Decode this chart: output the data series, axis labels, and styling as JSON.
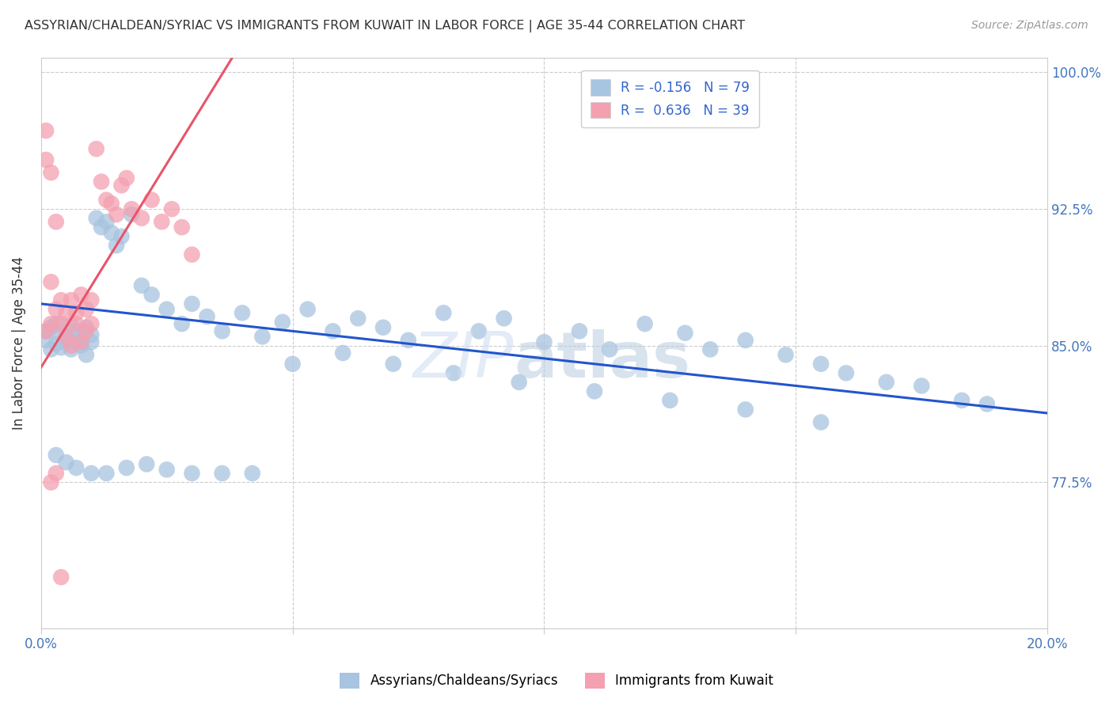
{
  "title": "ASSYRIAN/CHALDEAN/SYRIAC VS IMMIGRANTS FROM KUWAIT IN LABOR FORCE | AGE 35-44 CORRELATION CHART",
  "source": "Source: ZipAtlas.com",
  "ylabel": "In Labor Force | Age 35-44",
  "xmin": 0.0,
  "xmax": 0.2,
  "ymin": 0.695,
  "ymax": 1.008,
  "yticks": [
    0.775,
    0.85,
    0.925,
    1.0
  ],
  "xticks": [
    0.0,
    0.05,
    0.1,
    0.15,
    0.2
  ],
  "xtick_labels": [
    "0.0%",
    "",
    "",
    "",
    "20.0%"
  ],
  "ytick_labels": [
    "77.5%",
    "85.0%",
    "92.5%",
    "100.0%"
  ],
  "legend_r1": "R = -0.156",
  "legend_n1": "N = 79",
  "legend_r2": "R =  0.636",
  "legend_n2": "N = 39",
  "blue_color": "#a8c4e0",
  "pink_color": "#f4a0b0",
  "blue_line_color": "#2255cc",
  "pink_line_color": "#e8546a",
  "blue_line_x0": 0.0,
  "blue_line_x1": 0.2,
  "blue_line_y0": 0.873,
  "blue_line_y1": 0.813,
  "pink_line_x0": 0.0,
  "pink_line_x1": 0.038,
  "pink_line_y0": 0.838,
  "pink_line_y1": 1.008,
  "blue_x": [
    0.001,
    0.001,
    0.002,
    0.002,
    0.003,
    0.003,
    0.004,
    0.004,
    0.005,
    0.005,
    0.006,
    0.006,
    0.007,
    0.007,
    0.008,
    0.008,
    0.009,
    0.009,
    0.01,
    0.01,
    0.011,
    0.012,
    0.013,
    0.014,
    0.015,
    0.016,
    0.018,
    0.02,
    0.022,
    0.025,
    0.028,
    0.03,
    0.033,
    0.036,
    0.04,
    0.044,
    0.048,
    0.053,
    0.058,
    0.063,
    0.068,
    0.073,
    0.08,
    0.087,
    0.092,
    0.1,
    0.107,
    0.113,
    0.12,
    0.128,
    0.133,
    0.14,
    0.148,
    0.155,
    0.16,
    0.168,
    0.175,
    0.183,
    0.188,
    0.003,
    0.005,
    0.007,
    0.01,
    0.013,
    0.017,
    0.021,
    0.025,
    0.03,
    0.036,
    0.042,
    0.05,
    0.06,
    0.07,
    0.082,
    0.095,
    0.11,
    0.125,
    0.14,
    0.155
  ],
  "blue_y": [
    0.858,
    0.853,
    0.86,
    0.848,
    0.862,
    0.851,
    0.856,
    0.849,
    0.855,
    0.852,
    0.861,
    0.848,
    0.858,
    0.852,
    0.855,
    0.85,
    0.86,
    0.845,
    0.856,
    0.852,
    0.92,
    0.915,
    0.918,
    0.912,
    0.905,
    0.91,
    0.922,
    0.883,
    0.878,
    0.87,
    0.862,
    0.873,
    0.866,
    0.858,
    0.868,
    0.855,
    0.863,
    0.87,
    0.858,
    0.865,
    0.86,
    0.853,
    0.868,
    0.858,
    0.865,
    0.852,
    0.858,
    0.848,
    0.862,
    0.857,
    0.848,
    0.853,
    0.845,
    0.84,
    0.835,
    0.83,
    0.828,
    0.82,
    0.818,
    0.79,
    0.786,
    0.783,
    0.78,
    0.78,
    0.783,
    0.785,
    0.782,
    0.78,
    0.78,
    0.78,
    0.84,
    0.846,
    0.84,
    0.835,
    0.83,
    0.825,
    0.82,
    0.815,
    0.808
  ],
  "pink_x": [
    0.001,
    0.001,
    0.001,
    0.002,
    0.002,
    0.002,
    0.003,
    0.003,
    0.003,
    0.004,
    0.004,
    0.005,
    0.005,
    0.006,
    0.006,
    0.007,
    0.007,
    0.008,
    0.008,
    0.009,
    0.009,
    0.01,
    0.01,
    0.011,
    0.012,
    0.013,
    0.014,
    0.015,
    0.016,
    0.017,
    0.018,
    0.02,
    0.022,
    0.024,
    0.026,
    0.028,
    0.03,
    0.002,
    0.004
  ],
  "pink_y": [
    0.858,
    0.952,
    0.968,
    0.862,
    0.945,
    0.885,
    0.87,
    0.918,
    0.78,
    0.875,
    0.862,
    0.868,
    0.855,
    0.875,
    0.85,
    0.868,
    0.862,
    0.878,
    0.852,
    0.87,
    0.858,
    0.875,
    0.862,
    0.958,
    0.94,
    0.93,
    0.928,
    0.922,
    0.938,
    0.942,
    0.925,
    0.92,
    0.93,
    0.918,
    0.925,
    0.915,
    0.9,
    0.775,
    0.723
  ]
}
